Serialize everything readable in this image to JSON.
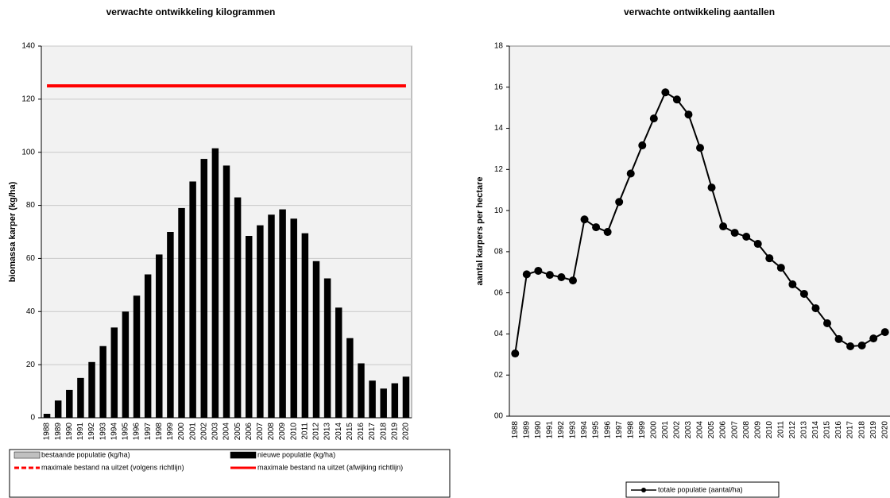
{
  "chart_data": [
    {
      "type": "bar",
      "title": "verwachte ontwikkeling  kilogrammen",
      "y_label": "biomassa karper (kg/ha)",
      "categories": [
        "1988",
        "1989",
        "1990",
        "1991",
        "1992",
        "1993",
        "1994",
        "1995",
        "1996",
        "1997",
        "1998",
        "1999",
        "2000",
        "2001",
        "2002",
        "2003",
        "2004",
        "2005",
        "2006",
        "2007",
        "2008",
        "2009",
        "2010",
        "2011",
        "2012",
        "2013",
        "2014",
        "2015",
        "2016",
        "2017",
        "2018",
        "2019",
        "2020"
      ],
      "series": [
        {
          "name": "bestaande populatie (kg/ha)",
          "color": "#c0c0c0",
          "style": "bar"
        },
        {
          "name": "nieuwe populatie (kg/ha)",
          "color": "#000000",
          "style": "bar",
          "values": [
            1.5,
            6.5,
            10.5,
            15,
            21,
            27,
            34,
            40,
            46,
            54,
            61.5,
            70,
            79,
            89,
            97.5,
            101.5,
            95,
            83,
            68.5,
            72.5,
            76.5,
            78.5,
            75,
            69.5,
            59,
            52.5,
            41.5,
            30,
            20.5,
            14,
            11,
            13,
            15.5
          ]
        },
        {
          "name": "maximale bestand na uitzet (volgens richtlijn)",
          "color": "#ff0000",
          "style": "dashed"
        },
        {
          "name": "maximale bestand na uitzet (afwijking richtlijn)",
          "color": "#ff0000",
          "style": "line",
          "values": [
            125,
            125,
            125,
            125,
            125,
            125,
            125,
            125,
            125,
            125,
            125,
            125,
            125,
            125,
            125,
            125,
            125,
            125,
            125,
            125,
            125,
            125,
            125,
            125,
            125,
            125,
            125,
            125,
            125,
            125,
            125,
            125,
            125
          ]
        }
      ],
      "ylim": [
        0,
        140
      ],
      "yticks": [
        0,
        20,
        40,
        60,
        80,
        100,
        120,
        140
      ],
      "grid": true
    },
    {
      "type": "line",
      "title": "verwachte ontwikkeling  aantallen",
      "y_label": "aantal karpers per hectare",
      "categories": [
        "1988",
        "1989",
        "1990",
        "1991",
        "1992",
        "1993",
        "1994",
        "1995",
        "1996",
        "1997",
        "1998",
        "1999",
        "2000",
        "2001",
        "2002",
        "2003",
        "2004",
        "2005",
        "2006",
        "2007",
        "2008",
        "2009",
        "2010",
        "2011",
        "2012",
        "2013",
        "2014",
        "2015",
        "2016",
        "2017",
        "2018",
        "2019",
        "2020"
      ],
      "series": [
        {
          "name": "totale populatie (aantal/ha)",
          "color": "#000000",
          "style": "marker-line",
          "values": [
            3.05,
            6.9,
            7.07,
            6.87,
            6.76,
            6.6,
            9.57,
            9.19,
            8.96,
            10.42,
            11.8,
            13.17,
            14.48,
            15.75,
            15.4,
            14.67,
            13.05,
            11.12,
            9.23,
            8.92,
            8.73,
            8.38,
            7.68,
            7.22,
            6.41,
            5.95,
            5.25,
            4.52,
            3.75,
            3.4,
            3.44,
            3.78,
            4.09
          ]
        }
      ],
      "ylim": [
        0,
        18
      ],
      "yticks": [
        {
          "value": 0,
          "label": "00"
        },
        {
          "value": 2,
          "label": "02"
        },
        {
          "value": 4,
          "label": "04"
        },
        {
          "value": 6,
          "label": "06"
        },
        {
          "value": 8,
          "label": "08"
        },
        10,
        12,
        14,
        16,
        18
      ],
      "grid": false
    }
  ]
}
